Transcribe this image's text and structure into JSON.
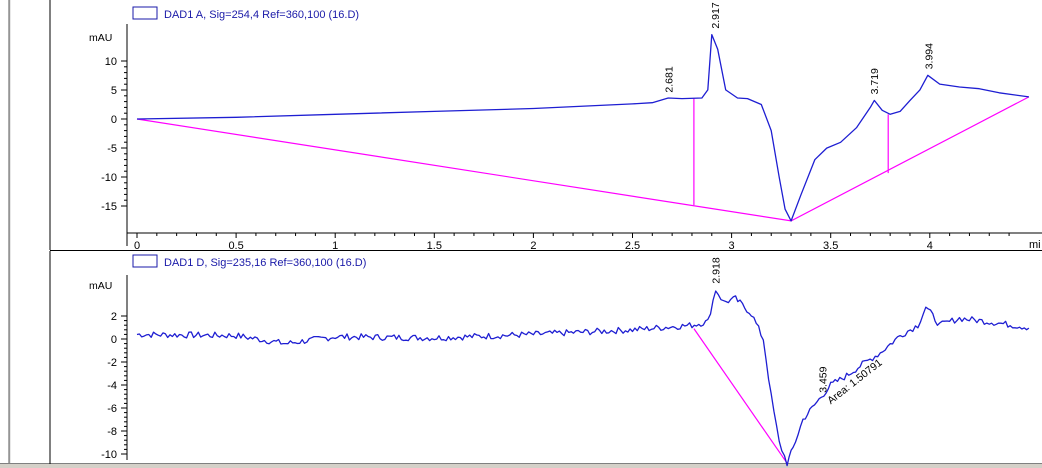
{
  "chart_data": [
    {
      "type": "line",
      "legend": "DAD1 A, Sig=254,4 Ref=360,100 (16.D)",
      "ylabel": "mAU",
      "xlabel": "mi",
      "xlim": [
        -0.05,
        4.5
      ],
      "ylim": [
        -19.3,
        20.5
      ],
      "x_ticks": [
        "0",
        "0.5",
        "1",
        "1.5",
        "2",
        "2.5",
        "3",
        "3.5",
        "4"
      ],
      "y_ticks": [
        "10",
        "5",
        "0",
        "-5",
        "-10",
        "-15"
      ],
      "series": [
        {
          "color": "#1e1ed2",
          "points": [
            [
              0,
              0
            ],
            [
              0.5,
              0.3
            ],
            [
              1,
              0.8
            ],
            [
              1.5,
              1.3
            ],
            [
              2,
              1.8
            ],
            [
              2.5,
              2.6
            ],
            [
              2.6,
              2.8
            ],
            [
              2.68,
              3.6
            ],
            [
              2.75,
              3.5
            ],
            [
              2.85,
              3.6
            ],
            [
              2.88,
              5
            ],
            [
              2.9,
              14.5
            ],
            [
              2.93,
              12
            ],
            [
              2.97,
              5
            ],
            [
              3.03,
              3.6
            ],
            [
              3.08,
              3.5
            ],
            [
              3.15,
              2.5
            ],
            [
              3.2,
              -2
            ],
            [
              3.24,
              -10
            ],
            [
              3.27,
              -15.5
            ],
            [
              3.3,
              -17.5
            ],
            [
              3.35,
              -13
            ],
            [
              3.42,
              -7
            ],
            [
              3.48,
              -5
            ],
            [
              3.55,
              -4
            ],
            [
              3.63,
              -1.5
            ],
            [
              3.7,
              2
            ],
            [
              3.72,
              3.2
            ],
            [
              3.76,
              1.5
            ],
            [
              3.8,
              0.8
            ],
            [
              3.85,
              1.3
            ],
            [
              3.9,
              3.2
            ],
            [
              3.95,
              5
            ],
            [
              3.99,
              7.5
            ],
            [
              4.05,
              6
            ],
            [
              4.15,
              5.5
            ],
            [
              4.25,
              5.2
            ],
            [
              4.35,
              4.5
            ],
            [
              4.5,
              3.8
            ]
          ]
        }
      ],
      "baselines": [
        {
          "color": "#ff00ff",
          "points": [
            [
              0,
              0
            ],
            [
              3.3,
              -17.5
            ],
            [
              4.5,
              3.8
            ]
          ]
        },
        {
          "color": "#ff00ff",
          "points": [
            [
              2.81,
              3.5
            ],
            [
              2.81,
              -14.8
            ]
          ]
        },
        {
          "color": "#ff00ff",
          "points": [
            [
              3.79,
              0.8
            ],
            [
              3.79,
              -9.3
            ]
          ]
        }
      ],
      "peak_labels": [
        {
          "text": "2.681",
          "x": 2.681,
          "y": 3.5
        },
        {
          "text": "2.917",
          "x": 2.917,
          "y": 14.5
        },
        {
          "text": "3.719",
          "x": 3.719,
          "y": 3.2
        },
        {
          "text": "3.994",
          "x": 3.994,
          "y": 7.5
        }
      ]
    },
    {
      "type": "line",
      "legend": "DAD1 D, Sig=235,16 Ref=360,100 (16.D)",
      "ylabel": "mAU",
      "xlim": [
        -0.05,
        4.5
      ],
      "ylim": [
        -11,
        5.3
      ],
      "y_ticks": [
        "2",
        "0",
        "-2",
        "-4",
        "-6",
        "-8",
        "-10"
      ],
      "series": [
        {
          "color": "#1e1ed2",
          "noise": 0.28,
          "points": [
            [
              0,
              0.4
            ],
            [
              0.5,
              0.3
            ],
            [
              0.75,
              -0.4
            ],
            [
              1,
              0.2
            ],
            [
              1.5,
              0.1
            ],
            [
              2,
              0.4
            ],
            [
              2.5,
              0.8
            ],
            [
              2.8,
              1.2
            ],
            [
              2.88,
              1.5
            ],
            [
              2.92,
              4.3
            ],
            [
              2.96,
              3.2
            ],
            [
              3.02,
              3.5
            ],
            [
              3.1,
              2.2
            ],
            [
              3.16,
              0
            ],
            [
              3.2,
              -5
            ],
            [
              3.24,
              -9
            ],
            [
              3.28,
              -10.8
            ],
            [
              3.31,
              -9.5
            ],
            [
              3.36,
              -7
            ],
            [
              3.43,
              -5.5
            ],
            [
              3.5,
              -4
            ],
            [
              3.58,
              -3.2
            ],
            [
              3.66,
              -2.2
            ],
            [
              3.75,
              -1.2
            ],
            [
              3.85,
              0.3
            ],
            [
              3.94,
              1.2
            ],
            [
              3.98,
              2.8
            ],
            [
              4.05,
              1.2
            ],
            [
              4.15,
              1.8
            ],
            [
              4.3,
              1.5
            ],
            [
              4.5,
              1
            ]
          ]
        }
      ],
      "baselines": [
        {
          "color": "#ff00ff",
          "points": [
            [
              2.81,
              0.9
            ],
            [
              3.28,
              -10.8
            ]
          ]
        }
      ],
      "peak_labels": [
        {
          "text": "2.918",
          "x": 2.918,
          "y": 4.3
        },
        {
          "text": "3.459",
          "x": 3.459,
          "y": -5.2
        }
      ],
      "annotations": [
        {
          "text": "Area: 1.50791",
          "x": 3.5,
          "y": -5
        }
      ]
    }
  ]
}
